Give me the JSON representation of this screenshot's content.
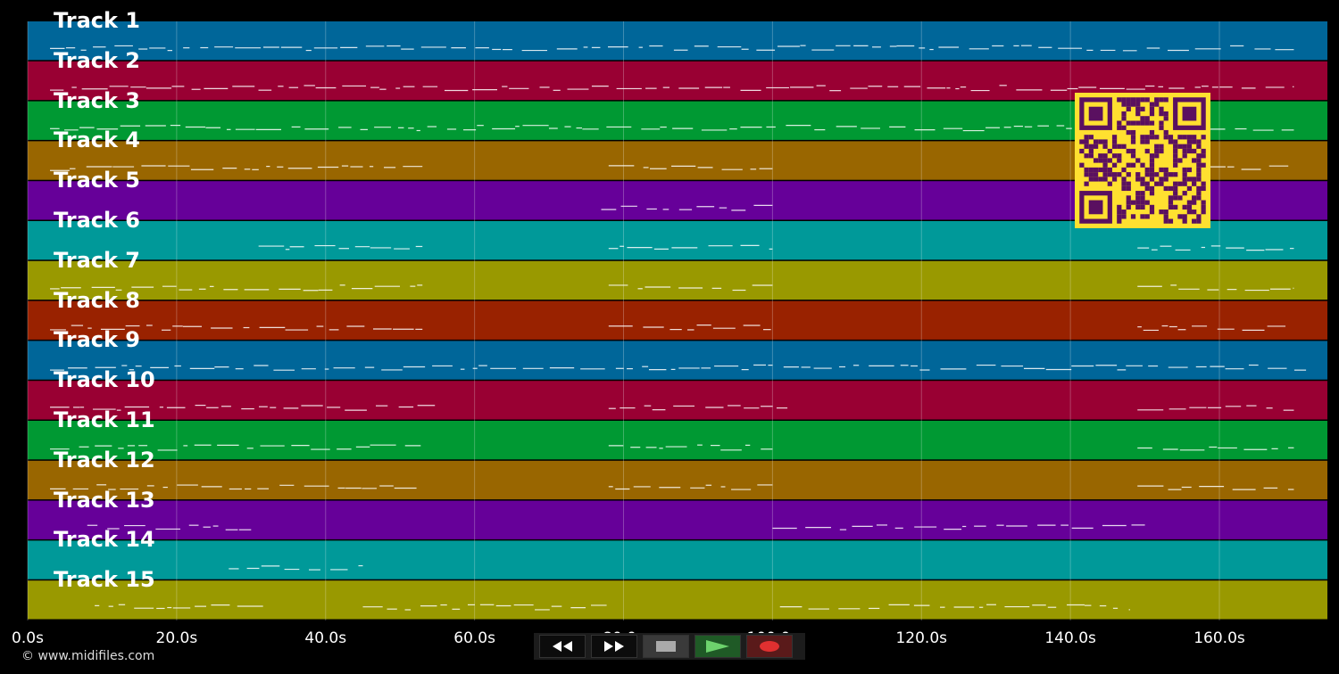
{
  "tracks": [
    {
      "label": "Track 1",
      "color": "#006699"
    },
    {
      "label": "Track 2",
      "color": "#990033"
    },
    {
      "label": "Track 3",
      "color": "#009933"
    },
    {
      "label": "Track 4",
      "color": "#996600"
    },
    {
      "label": "Track 5",
      "color": "#660099"
    },
    {
      "label": "Track 6",
      "color": "#009999"
    },
    {
      "label": "Track 7",
      "color": "#999900"
    },
    {
      "label": "Track 8",
      "color": "#992200"
    },
    {
      "label": "Track 9",
      "color": "#006699"
    },
    {
      "label": "Track 10",
      "color": "#990033"
    },
    {
      "label": "Track 11",
      "color": "#009933"
    },
    {
      "label": "Track 12",
      "color": "#996600"
    },
    {
      "label": "Track 13",
      "color": "#660099"
    },
    {
      "label": "Track 14",
      "color": "#009999"
    },
    {
      "label": "Track 15",
      "color": "#999900"
    }
  ],
  "time_axis": {
    "ticks": [
      "0.0s",
      "20.0s",
      "40.0s",
      "60.0s",
      "80.0s",
      "100.0s",
      "120.0s",
      "140.0s",
      "160.0s"
    ],
    "max_seconds": 174.5
  },
  "copyright": "© www.midifiles.com",
  "controls": [
    {
      "name": "rewind-button",
      "icon": "rewind-icon"
    },
    {
      "name": "fast-forward-button",
      "icon": "fast-forward-icon"
    },
    {
      "name": "stop-button",
      "icon": "stop-icon"
    },
    {
      "name": "play-button",
      "icon": "play-icon"
    },
    {
      "name": "record-button",
      "icon": "record-icon"
    }
  ],
  "qr": {
    "fg": "#5a1060",
    "bg": "#ffe030"
  }
}
